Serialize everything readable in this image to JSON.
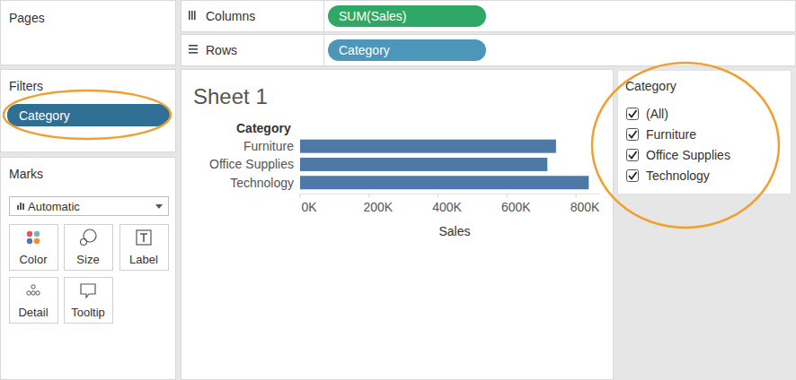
{
  "pages": {
    "label": "Pages"
  },
  "shelves": {
    "columns": {
      "label": "Columns",
      "pill": "SUM(Sales)"
    },
    "rows": {
      "label": "Rows",
      "pill": "Category"
    }
  },
  "filters": {
    "label": "Filters",
    "pill": "Category"
  },
  "marks": {
    "label": "Marks",
    "mark_type": "Automatic",
    "buttons": [
      "Color",
      "Size",
      "Label",
      "Detail",
      "Tooltip"
    ]
  },
  "filter_card": {
    "title": "Category",
    "items": [
      "(All)",
      "Furniture",
      "Office Supplies",
      "Technology"
    ]
  },
  "chart_data": {
    "type": "bar",
    "title": "Sheet 1",
    "orientation": "horizontal",
    "y_label": "Category",
    "x_label": "Sales",
    "categories": [
      "Furniture",
      "Office Supplies",
      "Technology"
    ],
    "values": [
      742000,
      717000,
      837000
    ],
    "color": "#4e79a7",
    "xlim": [
      0,
      870000
    ],
    "xticks": [
      {
        "value": 0,
        "label": "0K"
      },
      {
        "value": 200000,
        "label": "200K"
      },
      {
        "value": 400000,
        "label": "400K"
      },
      {
        "value": 600000,
        "label": "600K"
      },
      {
        "value": 800000,
        "label": "800K"
      }
    ]
  }
}
